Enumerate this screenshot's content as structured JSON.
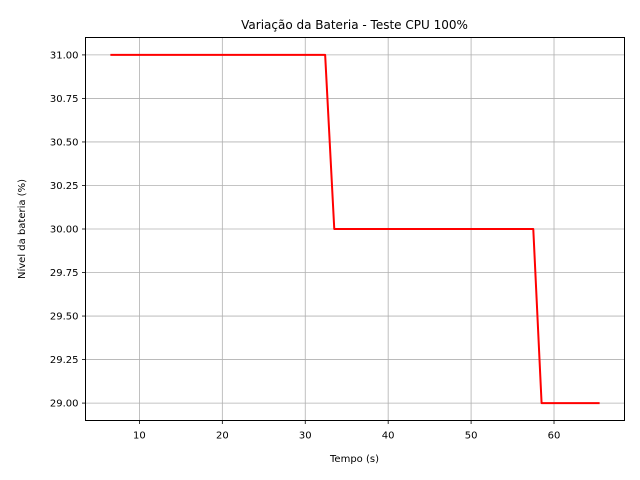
{
  "chart_data": {
    "type": "line",
    "title": "Variação da Bateria - Teste CPU 100%",
    "xlabel": "Tempo (s)",
    "ylabel": "Nível da bateria (%)",
    "xlim": [
      3.5,
      68.5
    ],
    "ylim": [
      28.9,
      31.1
    ],
    "xticks": [
      10,
      20,
      30,
      40,
      50,
      60
    ],
    "xtick_labels": [
      "10",
      "20",
      "30",
      "40",
      "50",
      "60"
    ],
    "yticks": [
      29.0,
      29.25,
      29.5,
      29.75,
      30.0,
      30.25,
      30.5,
      30.75,
      31.0
    ],
    "ytick_labels": [
      "29.00",
      "29.25",
      "29.50",
      "29.75",
      "30.00",
      "30.25",
      "30.50",
      "30.75",
      "31.00"
    ],
    "grid": true,
    "series": [
      {
        "color": "#ff0000",
        "x": [
          6.5,
          32.4,
          33.5,
          57.5,
          58.5,
          65.5
        ],
        "y": [
          31.0,
          31.0,
          30.0,
          30.0,
          29.0,
          29.0
        ]
      }
    ]
  }
}
